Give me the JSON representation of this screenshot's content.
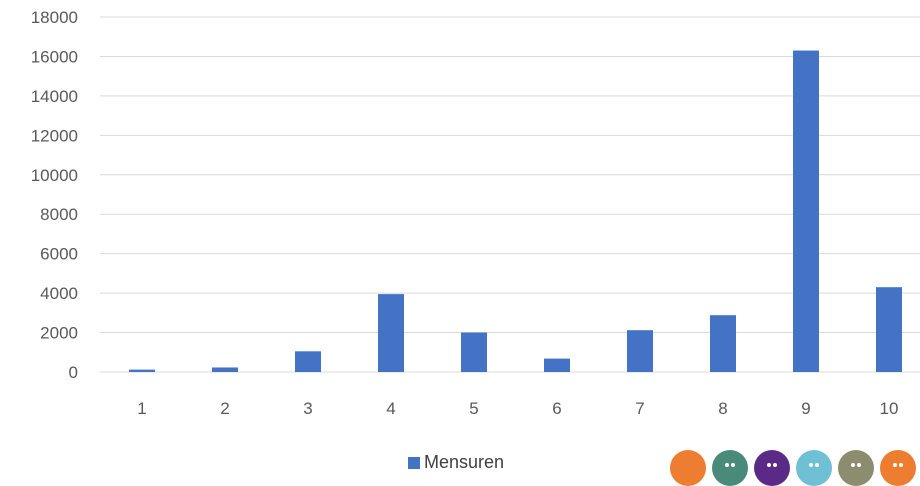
{
  "chart_data": {
    "type": "bar",
    "categories": [
      "1",
      "2",
      "3",
      "4",
      "5",
      "6",
      "7",
      "8",
      "9",
      "10"
    ],
    "series": [
      {
        "name": "Mensuren",
        "values": [
          120,
          230,
          1050,
          3950,
          2000,
          680,
          2120,
          2880,
          16300,
          4300
        ]
      }
    ],
    "ylim": [
      0,
      18000
    ],
    "yticks": [
      "0",
      "2000",
      "4000",
      "6000",
      "8000",
      "10000",
      "12000",
      "14000",
      "16000",
      "18000"
    ],
    "title": "",
    "xlabel": "",
    "ylabel": "",
    "grid": true,
    "legend_position": "bottom",
    "colors": {
      "bar": "#4472C4",
      "grid": "#D9D9D9",
      "tick_text": "#595959"
    }
  },
  "decor": {
    "face_colors": [
      "#ED7D31",
      "#4A8A7A",
      "#5B2A86",
      "#6FC0D4",
      "#8C8C6E",
      "#ED7D31",
      "#4A8A7A"
    ]
  }
}
